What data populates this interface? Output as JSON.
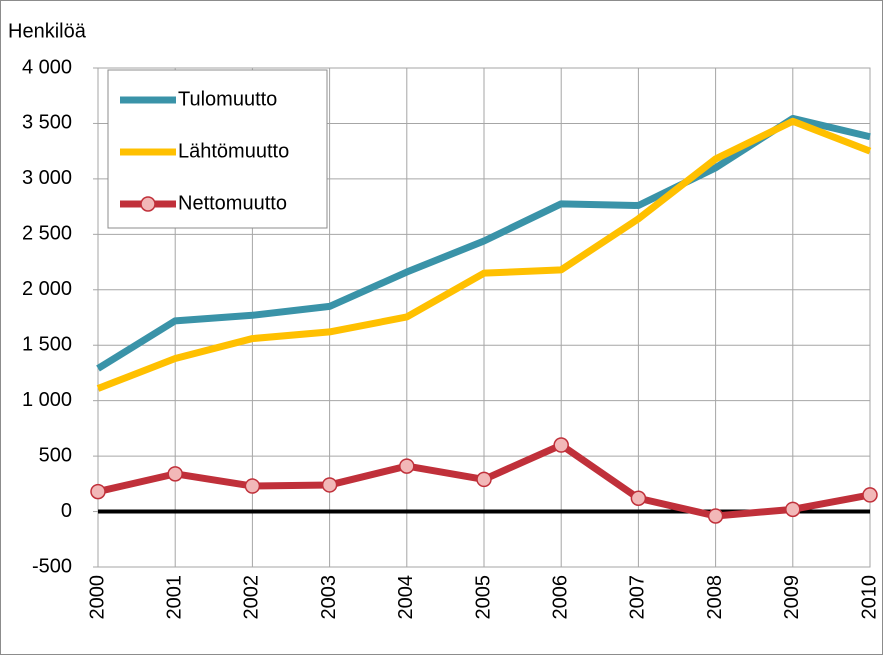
{
  "chart_data": {
    "type": "line",
    "y_label": "Henkilöä",
    "categories": [
      "2000",
      "2001",
      "2002",
      "2003",
      "2004",
      "2005",
      "2006",
      "2007",
      "2008",
      "2009",
      "2010"
    ],
    "series": [
      {
        "name": "Tulomuutto",
        "color": "#3a93a8",
        "values": [
          1290,
          1720,
          1770,
          1850,
          2160,
          2440,
          2775,
          2760,
          3100,
          3545,
          3380
        ]
      },
      {
        "name": "Lähtömuutto",
        "color": "#ffc000",
        "values": [
          1110,
          1380,
          1560,
          1620,
          1755,
          2150,
          2180,
          2640,
          3180,
          3520,
          3250
        ]
      },
      {
        "name": "Nettomuutto",
        "color": "#c0303a",
        "marker": "circle",
        "marker_color": "#f2b8b8",
        "values": [
          180,
          340,
          230,
          240,
          410,
          290,
          600,
          120,
          -40,
          20,
          150
        ]
      }
    ],
    "ylim": [
      -500,
      4000
    ],
    "yticks": [
      {
        "value": 4000,
        "label": "4 000"
      },
      {
        "value": 3500,
        "label": "3 500"
      },
      {
        "value": 3000,
        "label": "3 000"
      },
      {
        "value": 2500,
        "label": "2 500"
      },
      {
        "value": 2000,
        "label": "2 000"
      },
      {
        "value": 1500,
        "label": "1 500"
      },
      {
        "value": 1000,
        "label": "1 000"
      },
      500,
      0,
      -500
    ],
    "grid": true,
    "legend": "top-left"
  }
}
